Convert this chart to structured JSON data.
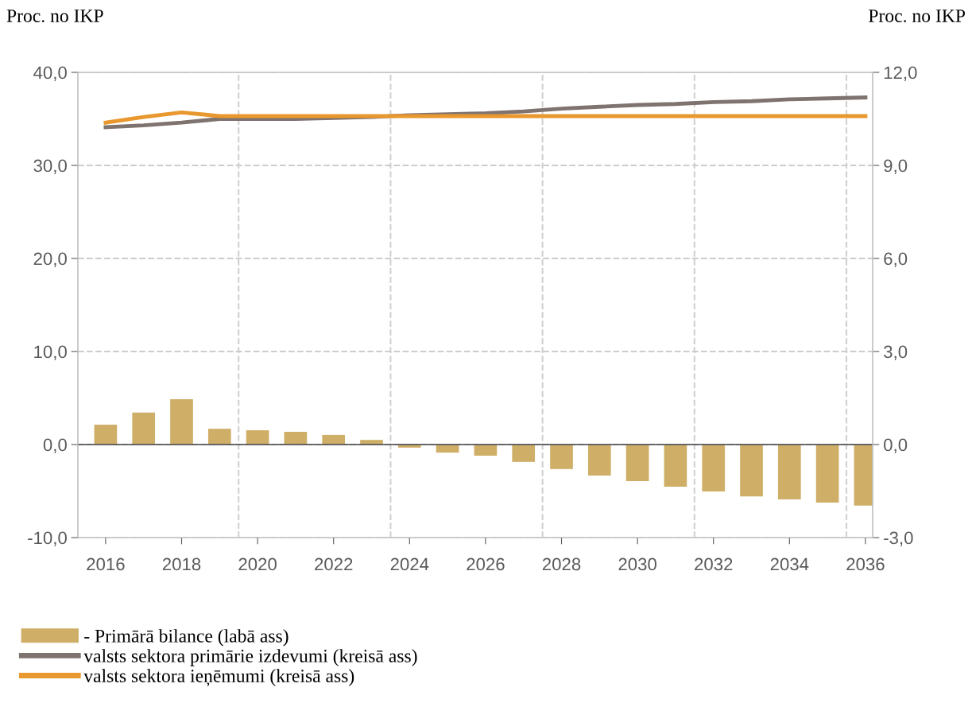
{
  "chart_data": {
    "type": "line",
    "ylabel": "Proc. no IKP",
    "y2label": "Proc. no IKP",
    "x": [
      2016,
      2017,
      2018,
      2019,
      2020,
      2021,
      2022,
      2023,
      2024,
      2025,
      2026,
      2027,
      2028,
      2029,
      2030,
      2031,
      2032,
      2033,
      2034,
      2035,
      2036
    ],
    "xlim": [
      2015.27,
      2036.19
    ],
    "xticks": [
      2016,
      2018,
      2020,
      2022,
      2024,
      2026,
      2028,
      2030,
      2032,
      2034,
      2036
    ],
    "ylim": [
      -10,
      40
    ],
    "yticks": [
      {
        "value": -10,
        "label": "-10,0"
      },
      {
        "value": 0,
        "label": "0,0"
      },
      {
        "value": 10,
        "label": "10,0"
      },
      {
        "value": 20,
        "label": "20,0"
      },
      {
        "value": 30,
        "label": "30,0"
      },
      {
        "value": 40,
        "label": "40,0"
      }
    ],
    "y2lim": [
      -3,
      12
    ],
    "y2ticks": [
      {
        "value": -3,
        "label": "-3,0"
      },
      {
        "value": 0,
        "label": "0,0"
      },
      {
        "value": 3,
        "label": "3,0"
      },
      {
        "value": 6,
        "label": "6,0"
      },
      {
        "value": 9,
        "label": "9,0"
      },
      {
        "value": 12,
        "label": "12,0"
      }
    ],
    "series": [
      {
        "name": "- Primārā bilance (labā ass)",
        "type": "bar",
        "axis": "y2",
        "color": "#cfae67",
        "values": [
          0.64,
          1.03,
          1.46,
          0.51,
          0.46,
          0.41,
          0.31,
          0.15,
          -0.1,
          -0.26,
          -0.36,
          -0.56,
          -0.79,
          -1.0,
          -1.18,
          -1.36,
          -1.51,
          -1.67,
          -1.77,
          -1.87,
          -1.97
        ]
      },
      {
        "name": "valsts sektora primārie izdevumi (kreisā ass)",
        "color": "#7f7370",
        "values": [
          34.1,
          34.3,
          34.6,
          35.0,
          35.0,
          35.0,
          35.1,
          35.2,
          35.4,
          35.5,
          35.6,
          35.8,
          36.1,
          36.3,
          36.5,
          36.6,
          36.8,
          36.9,
          37.1,
          37.2,
          37.3
        ]
      },
      {
        "name": "valsts sektora ieņēmumi (kreisā ass)",
        "color": "#e8982e",
        "values": [
          34.6,
          35.2,
          35.7,
          35.3,
          35.3,
          35.3,
          35.3,
          35.3,
          35.3,
          35.3,
          35.3,
          35.3,
          35.3,
          35.3,
          35.3,
          35.3,
          35.3,
          35.3,
          35.3,
          35.3,
          35.3
        ]
      }
    ],
    "ref_lines": [
      {
        "axis": "x",
        "value": 2019.5,
        "color": "#d0d0d0",
        "line_style": "dashed"
      },
      {
        "axis": "x",
        "value": 2023.5,
        "color": "#d0d0d0",
        "line_style": "dashed"
      },
      {
        "axis": "x",
        "value": 2027.5,
        "color": "#d0d0d0",
        "line_style": "dashed"
      },
      {
        "axis": "x",
        "value": 2031.5,
        "color": "#d0d0d0",
        "line_style": "dashed"
      },
      {
        "axis": "x",
        "value": 2035.5,
        "color": "#d0d0d0",
        "line_style": "dashed"
      }
    ],
    "grid": "y",
    "legend": "bottom",
    "line_style": "solid",
    "marker": "none"
  }
}
